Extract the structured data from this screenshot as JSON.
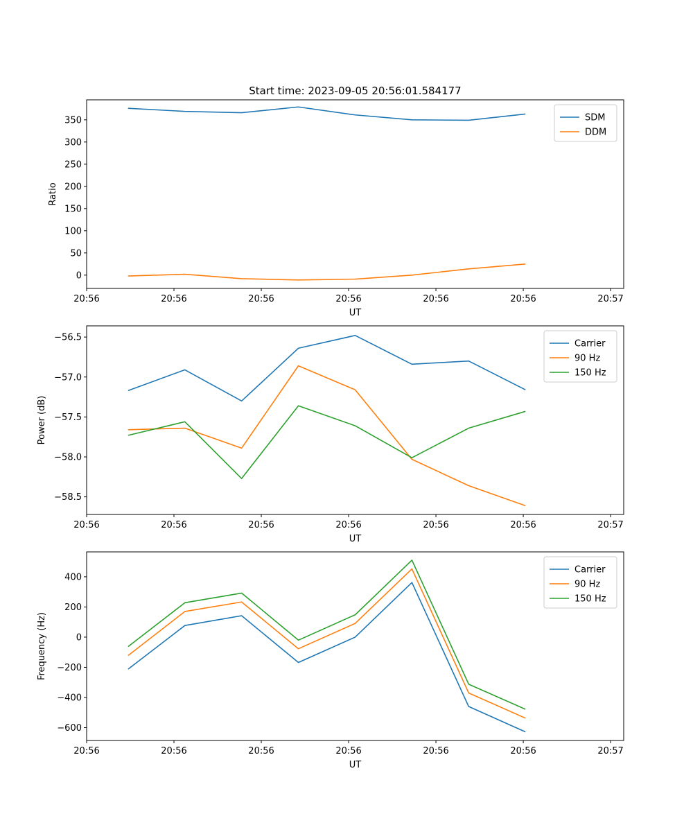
{
  "figure_title": "Start time: 2023-09-05 20:56:01.584177",
  "chart_data": [
    {
      "type": "line",
      "title": "Start time: 2023-09-05 20:56:01.584177",
      "xlabel": "UT",
      "ylabel": "Ratio",
      "xlim": [
        0,
        12.3
      ],
      "ylim": [
        -30,
        395
      ],
      "xticks": [
        {
          "v": 0,
          "label": "20:56"
        },
        {
          "v": 2,
          "label": "20:56"
        },
        {
          "v": 4,
          "label": "20:56"
        },
        {
          "v": 6,
          "label": "20:56"
        },
        {
          "v": 8,
          "label": "20:56"
        },
        {
          "v": 10,
          "label": "20:56"
        },
        {
          "v": 12,
          "label": "20:57"
        }
      ],
      "yticks": [
        {
          "v": 0,
          "label": "0"
        },
        {
          "v": 50,
          "label": "50"
        },
        {
          "v": 100,
          "label": "100"
        },
        {
          "v": 150,
          "label": "150"
        },
        {
          "v": 200,
          "label": "200"
        },
        {
          "v": 250,
          "label": "250"
        },
        {
          "v": 300,
          "label": "300"
        },
        {
          "v": 350,
          "label": "350"
        }
      ],
      "x": [
        0.95,
        2.25,
        3.55,
        4.85,
        6.15,
        7.45,
        8.75,
        10.05
      ],
      "series": [
        {
          "name": "SDM",
          "color": "#1f77b4",
          "values": [
            376,
            369,
            366,
            379,
            361,
            350,
            349,
            363
          ]
        },
        {
          "name": "DDM",
          "color": "#ff7f0e",
          "values": [
            -2,
            2,
            -8,
            -11,
            -9,
            0,
            14,
            25
          ]
        }
      ],
      "legend": "top-right"
    },
    {
      "type": "line",
      "xlabel": "UT",
      "ylabel": "Power (dB)",
      "xlim": [
        0,
        12.3
      ],
      "ylim": [
        -58.72,
        -56.36
      ],
      "xticks": [
        {
          "v": 0,
          "label": "20:56"
        },
        {
          "v": 2,
          "label": "20:56"
        },
        {
          "v": 4,
          "label": "20:56"
        },
        {
          "v": 6,
          "label": "20:56"
        },
        {
          "v": 8,
          "label": "20:56"
        },
        {
          "v": 10,
          "label": "20:56"
        },
        {
          "v": 12,
          "label": "20:57"
        }
      ],
      "yticks": [
        {
          "v": -58.5,
          "label": "−58.5"
        },
        {
          "v": -58.0,
          "label": "−58.0"
        },
        {
          "v": -57.5,
          "label": "−57.5"
        },
        {
          "v": -57.0,
          "label": "−57.0"
        },
        {
          "v": -56.5,
          "label": "−56.5"
        }
      ],
      "x": [
        0.95,
        2.25,
        3.55,
        4.85,
        6.15,
        7.45,
        8.75,
        10.05
      ],
      "series": [
        {
          "name": "Carrier",
          "color": "#1f77b4",
          "values": [
            -57.17,
            -56.91,
            -57.3,
            -56.64,
            -56.48,
            -56.84,
            -56.8,
            -57.16
          ]
        },
        {
          "name": "90 Hz",
          "color": "#ff7f0e",
          "values": [
            -57.66,
            -57.64,
            -57.89,
            -56.86,
            -57.16,
            -58.03,
            -58.36,
            -58.61
          ]
        },
        {
          "name": "150 Hz",
          "color": "#2ca02c",
          "values": [
            -57.73,
            -57.56,
            -58.27,
            -57.36,
            -57.61,
            -58.01,
            -57.64,
            -57.43
          ]
        }
      ],
      "legend": "top-right"
    },
    {
      "type": "line",
      "xlabel": "UT",
      "ylabel": "Frequency (Hz)",
      "xlim": [
        0,
        12.3
      ],
      "ylim": [
        -685,
        565
      ],
      "xticks": [
        {
          "v": 0,
          "label": "20:56"
        },
        {
          "v": 2,
          "label": "20:56"
        },
        {
          "v": 4,
          "label": "20:56"
        },
        {
          "v": 6,
          "label": "20:56"
        },
        {
          "v": 8,
          "label": "20:56"
        },
        {
          "v": 10,
          "label": "20:56"
        },
        {
          "v": 12,
          "label": "20:57"
        }
      ],
      "yticks": [
        {
          "v": -600,
          "label": "−600"
        },
        {
          "v": -400,
          "label": "−400"
        },
        {
          "v": -200,
          "label": "−200"
        },
        {
          "v": 0,
          "label": "0"
        },
        {
          "v": 200,
          "label": "200"
        },
        {
          "v": 400,
          "label": "400"
        }
      ],
      "x": [
        0.95,
        2.25,
        3.55,
        4.85,
        6.15,
        7.45,
        8.75,
        10.05
      ],
      "series": [
        {
          "name": "Carrier",
          "color": "#1f77b4",
          "values": [
            -212,
            77,
            142,
            -168,
            0,
            362,
            -460,
            -628
          ]
        },
        {
          "name": "90 Hz",
          "color": "#ff7f0e",
          "values": [
            -122,
            170,
            233,
            -77,
            91,
            452,
            -370,
            -537
          ]
        },
        {
          "name": "150 Hz",
          "color": "#2ca02c",
          "values": [
            -63,
            228,
            292,
            -20,
            148,
            510,
            -312,
            -478
          ]
        }
      ],
      "legend": "top-right"
    }
  ]
}
